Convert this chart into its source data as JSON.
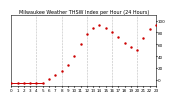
{
  "title": "Milwaukee Weather THSW Index per Hour (24 Hours)",
  "title_fontsize": 3.5,
  "background_color": "#ffffff",
  "plot_bg_color": "#ffffff",
  "line_color": "#cc0000",
  "marker_size": 1.5,
  "ylim": [
    -10,
    110
  ],
  "xlim": [
    0,
    23
  ],
  "yticks": [
    0,
    20,
    40,
    60,
    80,
    100
  ],
  "ytick_labels": [
    "0",
    "20",
    "40",
    "60",
    "80",
    "100"
  ],
  "ytick_fontsize": 3.0,
  "xtick_fontsize": 3.0,
  "grid_color": "#bbbbbb",
  "grid_style": "--",
  "grid_lw": 0.4,
  "x_values": [
    0,
    1,
    2,
    3,
    4,
    5,
    6,
    7,
    8,
    9,
    10,
    11,
    12,
    13,
    14,
    15,
    16,
    17,
    18,
    19,
    20,
    21,
    22,
    23
  ],
  "y_values": [
    -5,
    -5,
    -5,
    -5,
    -5,
    -5,
    2,
    8,
    15,
    25,
    40,
    60,
    78,
    88,
    92,
    88,
    80,
    72,
    62,
    55,
    50,
    70,
    85,
    92
  ],
  "flat_end": 5,
  "dashed_x": [
    4,
    8,
    12,
    16,
    20
  ]
}
